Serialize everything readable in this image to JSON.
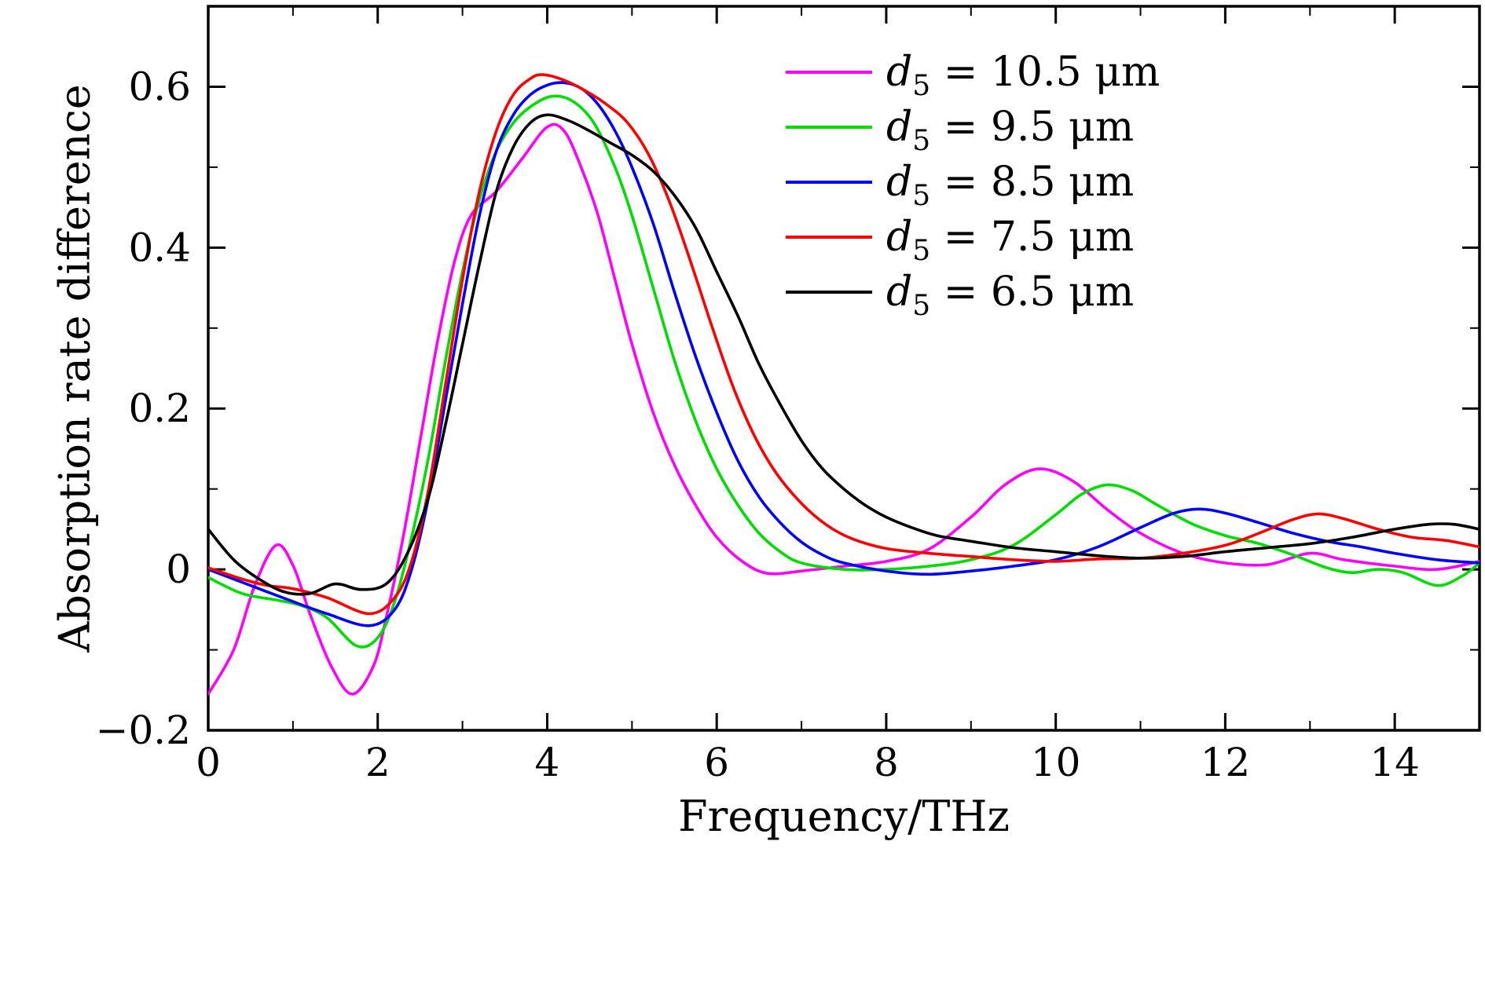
{
  "background_color": "#ffffff",
  "frame_color": "#000000",
  "chart_data": {
    "type": "line",
    "title": "",
    "xlabel": "Frequency/THz",
    "ylabel": "Absorption rate difference",
    "xlim": [
      0,
      15
    ],
    "ylim": [
      -0.2,
      0.7
    ],
    "grid": false,
    "legend_position": "top-right",
    "xticks": {
      "values": [
        0,
        2,
        4,
        6,
        8,
        10,
        12,
        14
      ],
      "labels": [
        "0",
        "2",
        "4",
        "6",
        "8",
        "10",
        "12",
        "14"
      ]
    },
    "yticks": {
      "values": [
        -0.2,
        0,
        0.2,
        0.4,
        0.6
      ],
      "labels": [
        "−0.2",
        "0",
        "0.2",
        "0.4",
        "0.6"
      ]
    },
    "x_minor_step": 1,
    "y_minor_step": 0.1,
    "series": [
      {
        "id": "d5-10.5um",
        "label": {
          "var": "d",
          "sub": "5",
          "rest": "= 10.5 μm"
        },
        "color": "#ff00ff",
        "points": [
          [
            0,
            -0.155
          ],
          [
            0.3,
            -0.1
          ],
          [
            0.55,
            -0.02
          ],
          [
            0.8,
            0.03
          ],
          [
            1.0,
            0.005
          ],
          [
            1.2,
            -0.055
          ],
          [
            1.45,
            -0.12
          ],
          [
            1.7,
            -0.155
          ],
          [
            1.95,
            -0.12
          ],
          [
            2.1,
            -0.06
          ],
          [
            2.3,
            0.04
          ],
          [
            2.5,
            0.16
          ],
          [
            2.7,
            0.28
          ],
          [
            2.9,
            0.38
          ],
          [
            3.1,
            0.44
          ],
          [
            3.4,
            0.47
          ],
          [
            3.7,
            0.51
          ],
          [
            4.0,
            0.55
          ],
          [
            4.2,
            0.545
          ],
          [
            4.4,
            0.5
          ],
          [
            4.6,
            0.44
          ],
          [
            4.8,
            0.36
          ],
          [
            5.0,
            0.28
          ],
          [
            5.25,
            0.195
          ],
          [
            5.5,
            0.13
          ],
          [
            5.75,
            0.08
          ],
          [
            6.0,
            0.04
          ],
          [
            6.3,
            0.01
          ],
          [
            6.6,
            -0.005
          ],
          [
            7.0,
            -0.002
          ],
          [
            7.5,
            0.004
          ],
          [
            8.0,
            0.01
          ],
          [
            8.5,
            0.025
          ],
          [
            9.0,
            0.065
          ],
          [
            9.4,
            0.105
          ],
          [
            9.8,
            0.125
          ],
          [
            10.2,
            0.11
          ],
          [
            10.6,
            0.075
          ],
          [
            11.0,
            0.045
          ],
          [
            11.5,
            0.02
          ],
          [
            12.0,
            0.008
          ],
          [
            12.5,
            0.006
          ],
          [
            13.0,
            0.02
          ],
          [
            13.4,
            0.012
          ],
          [
            14.0,
            0.004
          ],
          [
            14.5,
            0.0
          ],
          [
            15.0,
            0.01
          ]
        ]
      },
      {
        "id": "d5-9.5um",
        "label": {
          "var": "d",
          "sub": "5",
          "rest": "= 9.5 μm"
        },
        "color": "#00dd00",
        "points": [
          [
            0,
            -0.01
          ],
          [
            0.4,
            -0.03
          ],
          [
            0.8,
            -0.038
          ],
          [
            1.1,
            -0.045
          ],
          [
            1.4,
            -0.06
          ],
          [
            1.75,
            -0.095
          ],
          [
            2.0,
            -0.085
          ],
          [
            2.2,
            -0.04
          ],
          [
            2.4,
            0.04
          ],
          [
            2.6,
            0.14
          ],
          [
            2.8,
            0.26
          ],
          [
            3.0,
            0.37
          ],
          [
            3.2,
            0.46
          ],
          [
            3.4,
            0.52
          ],
          [
            3.6,
            0.555
          ],
          [
            3.8,
            0.575
          ],
          [
            4.05,
            0.588
          ],
          [
            4.3,
            0.582
          ],
          [
            4.55,
            0.555
          ],
          [
            4.8,
            0.5
          ],
          [
            5.0,
            0.44
          ],
          [
            5.25,
            0.35
          ],
          [
            5.5,
            0.26
          ],
          [
            5.75,
            0.185
          ],
          [
            6.0,
            0.125
          ],
          [
            6.25,
            0.08
          ],
          [
            6.5,
            0.045
          ],
          [
            6.75,
            0.022
          ],
          [
            7.0,
            0.008
          ],
          [
            7.5,
            0.0
          ],
          [
            8.0,
            0.0
          ],
          [
            8.5,
            0.004
          ],
          [
            9.0,
            0.012
          ],
          [
            9.5,
            0.03
          ],
          [
            10.0,
            0.068
          ],
          [
            10.3,
            0.093
          ],
          [
            10.6,
            0.105
          ],
          [
            10.9,
            0.098
          ],
          [
            11.2,
            0.08
          ],
          [
            11.6,
            0.057
          ],
          [
            12.0,
            0.042
          ],
          [
            12.4,
            0.032
          ],
          [
            12.8,
            0.018
          ],
          [
            13.2,
            0.002
          ],
          [
            13.5,
            -0.004
          ],
          [
            13.8,
            0.0
          ],
          [
            14.1,
            -0.004
          ],
          [
            14.5,
            -0.02
          ],
          [
            14.8,
            -0.008
          ],
          [
            15.0,
            0.008
          ]
        ]
      },
      {
        "id": "d5-8.5um",
        "label": {
          "var": "d",
          "sub": "5",
          "rest": "= 8.5 μm"
        },
        "color": "#0000ff",
        "points": [
          [
            0,
            0.0
          ],
          [
            0.5,
            -0.02
          ],
          [
            1.0,
            -0.04
          ],
          [
            1.4,
            -0.055
          ],
          [
            1.9,
            -0.07
          ],
          [
            2.2,
            -0.05
          ],
          [
            2.4,
            0.0
          ],
          [
            2.6,
            0.09
          ],
          [
            2.8,
            0.21
          ],
          [
            3.0,
            0.33
          ],
          [
            3.2,
            0.44
          ],
          [
            3.4,
            0.52
          ],
          [
            3.6,
            0.565
          ],
          [
            3.8,
            0.59
          ],
          [
            4.0,
            0.602
          ],
          [
            4.2,
            0.605
          ],
          [
            4.4,
            0.598
          ],
          [
            4.6,
            0.578
          ],
          [
            4.8,
            0.545
          ],
          [
            5.0,
            0.5
          ],
          [
            5.25,
            0.43
          ],
          [
            5.5,
            0.345
          ],
          [
            5.75,
            0.265
          ],
          [
            6.0,
            0.195
          ],
          [
            6.25,
            0.135
          ],
          [
            6.5,
            0.09
          ],
          [
            6.75,
            0.058
          ],
          [
            7.0,
            0.034
          ],
          [
            7.25,
            0.018
          ],
          [
            7.5,
            0.008
          ],
          [
            8.0,
            -0.002
          ],
          [
            8.5,
            -0.006
          ],
          [
            9.0,
            -0.002
          ],
          [
            9.5,
            0.004
          ],
          [
            10.0,
            0.012
          ],
          [
            10.5,
            0.028
          ],
          [
            11.0,
            0.052
          ],
          [
            11.4,
            0.07
          ],
          [
            11.7,
            0.075
          ],
          [
            12.0,
            0.07
          ],
          [
            12.4,
            0.058
          ],
          [
            12.8,
            0.045
          ],
          [
            13.2,
            0.035
          ],
          [
            13.6,
            0.028
          ],
          [
            14.0,
            0.02
          ],
          [
            14.5,
            0.012
          ],
          [
            15.0,
            0.008
          ]
        ]
      },
      {
        "id": "d5-7.5um",
        "label": {
          "var": "d",
          "sub": "5",
          "rest": "= 7.5 μm"
        },
        "color": "#ff0000",
        "points": [
          [
            0,
            0.002
          ],
          [
            0.4,
            -0.012
          ],
          [
            0.7,
            -0.02
          ],
          [
            1.0,
            -0.024
          ],
          [
            1.4,
            -0.035
          ],
          [
            1.9,
            -0.055
          ],
          [
            2.2,
            -0.035
          ],
          [
            2.4,
            0.01
          ],
          [
            2.6,
            0.1
          ],
          [
            2.8,
            0.23
          ],
          [
            3.0,
            0.36
          ],
          [
            3.2,
            0.47
          ],
          [
            3.4,
            0.545
          ],
          [
            3.6,
            0.59
          ],
          [
            3.8,
            0.61
          ],
          [
            3.95,
            0.615
          ],
          [
            4.2,
            0.608
          ],
          [
            4.45,
            0.595
          ],
          [
            4.7,
            0.578
          ],
          [
            4.95,
            0.555
          ],
          [
            5.2,
            0.515
          ],
          [
            5.45,
            0.455
          ],
          [
            5.7,
            0.38
          ],
          [
            5.95,
            0.3
          ],
          [
            6.2,
            0.225
          ],
          [
            6.45,
            0.165
          ],
          [
            6.7,
            0.12
          ],
          [
            7.0,
            0.082
          ],
          [
            7.3,
            0.055
          ],
          [
            7.6,
            0.038
          ],
          [
            8.0,
            0.026
          ],
          [
            8.5,
            0.02
          ],
          [
            9.0,
            0.016
          ],
          [
            9.5,
            0.012
          ],
          [
            10.0,
            0.01
          ],
          [
            10.5,
            0.013
          ],
          [
            11.0,
            0.014
          ],
          [
            11.5,
            0.02
          ],
          [
            12.0,
            0.03
          ],
          [
            12.4,
            0.045
          ],
          [
            12.8,
            0.062
          ],
          [
            13.1,
            0.069
          ],
          [
            13.4,
            0.063
          ],
          [
            13.8,
            0.05
          ],
          [
            14.2,
            0.04
          ],
          [
            14.6,
            0.036
          ],
          [
            15.0,
            0.028
          ]
        ]
      },
      {
        "id": "d5-6.5um",
        "label": {
          "var": "d",
          "sub": "5",
          "rest": "= 6.5 μm"
        },
        "color": "#000000",
        "points": [
          [
            0,
            0.05
          ],
          [
            0.3,
            0.012
          ],
          [
            0.6,
            -0.012
          ],
          [
            0.9,
            -0.028
          ],
          [
            1.2,
            -0.03
          ],
          [
            1.5,
            -0.018
          ],
          [
            1.8,
            -0.025
          ],
          [
            2.1,
            -0.018
          ],
          [
            2.35,
            0.02
          ],
          [
            2.6,
            0.09
          ],
          [
            2.8,
            0.18
          ],
          [
            3.0,
            0.28
          ],
          [
            3.2,
            0.38
          ],
          [
            3.4,
            0.47
          ],
          [
            3.6,
            0.525
          ],
          [
            3.8,
            0.555
          ],
          [
            4.0,
            0.565
          ],
          [
            4.25,
            0.558
          ],
          [
            4.5,
            0.545
          ],
          [
            4.75,
            0.53
          ],
          [
            5.0,
            0.515
          ],
          [
            5.25,
            0.495
          ],
          [
            5.5,
            0.465
          ],
          [
            5.75,
            0.425
          ],
          [
            6.0,
            0.37
          ],
          [
            6.25,
            0.315
          ],
          [
            6.5,
            0.255
          ],
          [
            6.75,
            0.205
          ],
          [
            7.0,
            0.16
          ],
          [
            7.25,
            0.125
          ],
          [
            7.5,
            0.1
          ],
          [
            7.75,
            0.08
          ],
          [
            8.0,
            0.065
          ],
          [
            8.3,
            0.052
          ],
          [
            8.6,
            0.042
          ],
          [
            9.0,
            0.035
          ],
          [
            9.5,
            0.027
          ],
          [
            10.0,
            0.022
          ],
          [
            10.5,
            0.017
          ],
          [
            11.0,
            0.014
          ],
          [
            11.5,
            0.016
          ],
          [
            12.0,
            0.022
          ],
          [
            12.5,
            0.027
          ],
          [
            13.0,
            0.032
          ],
          [
            13.5,
            0.04
          ],
          [
            14.0,
            0.05
          ],
          [
            14.4,
            0.056
          ],
          [
            14.7,
            0.056
          ],
          [
            15.0,
            0.05
          ]
        ]
      }
    ]
  }
}
